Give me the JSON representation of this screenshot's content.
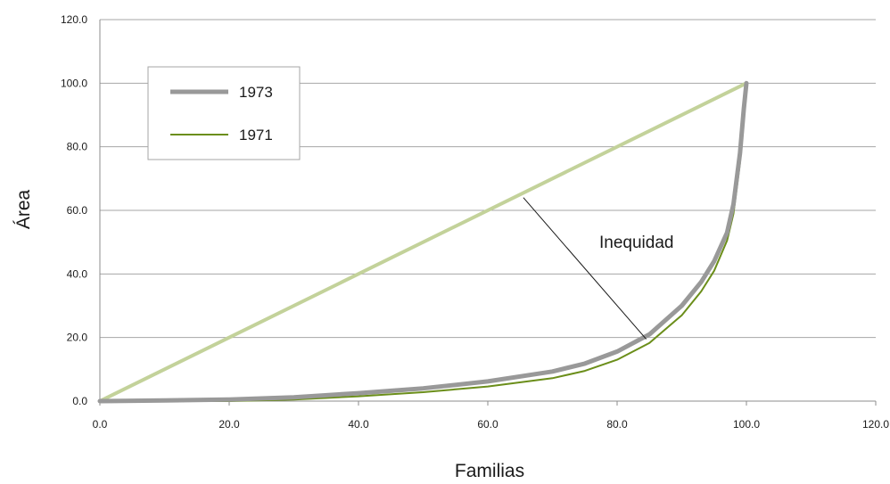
{
  "chart_data": {
    "type": "line",
    "xlabel": "Familias",
    "ylabel": "Área",
    "xlim": [
      0,
      120
    ],
    "ylim": [
      0,
      120
    ],
    "xticks": [
      "0.0",
      "20.0",
      "40.0",
      "60.0",
      "80.0",
      "100.0",
      "120.0"
    ],
    "yticks": [
      "0.0",
      "20.0",
      "40.0",
      "60.0",
      "80.0",
      "100.0",
      "120.0"
    ],
    "grid": "horizontal",
    "legend_position": "top-left",
    "equality_line": {
      "x": [
        0,
        100
      ],
      "y": [
        0,
        100
      ],
      "color": "#c3d29a"
    },
    "series": [
      {
        "name": "1973",
        "color": "#999999",
        "x": [
          0,
          10,
          20,
          30,
          40,
          50,
          60,
          70,
          75,
          80,
          85,
          90,
          93,
          95,
          97,
          98,
          99,
          99.6,
          100
        ],
        "y": [
          0,
          0.2,
          0.5,
          1.2,
          2.5,
          4.0,
          6.2,
          9.3,
          11.8,
          15.6,
          21.0,
          30.0,
          37.5,
          44.0,
          53.0,
          62.0,
          78.0,
          92.0,
          100
        ]
      },
      {
        "name": "1971",
        "color": "#6b8e1a",
        "x": [
          0,
          10,
          20,
          30,
          40,
          50,
          60,
          70,
          75,
          80,
          85,
          90,
          93,
          95,
          97,
          98,
          99,
          99.6,
          100
        ],
        "y": [
          0,
          0.0,
          0.0,
          0.5,
          1.5,
          2.8,
          4.6,
          7.2,
          9.5,
          13.0,
          18.3,
          27.0,
          34.5,
          41.0,
          50.5,
          59.0,
          75.0,
          90.0,
          100
        ]
      }
    ],
    "annotation": {
      "text": "Inequidad",
      "from": [
        65.5,
        64.0
      ],
      "to": [
        84.5,
        19.5
      ]
    }
  }
}
